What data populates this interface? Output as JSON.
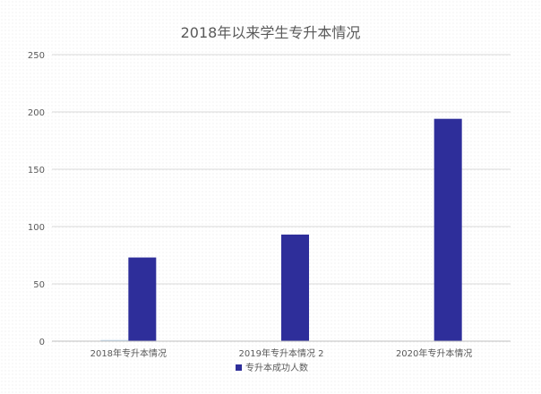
{
  "chart_data": {
    "type": "bar",
    "title": "2018年以来学生专升本情况",
    "categories": [
      "2018年专升本情况",
      "2019年专升本情况 2",
      "2020年专升本情况"
    ],
    "series": [
      {
        "name": "",
        "values": [
          1,
          null,
          null
        ],
        "color": "#bdd7ee"
      },
      {
        "name": "专升本成功人数",
        "values": [
          73,
          93,
          194
        ],
        "color": "#2e2e9a"
      }
    ],
    "yticks": [
      0,
      50,
      100,
      150,
      200,
      250
    ],
    "ylim": [
      0,
      250
    ],
    "grid": true,
    "legend": "bottom",
    "xlabel": "",
    "ylabel": ""
  }
}
